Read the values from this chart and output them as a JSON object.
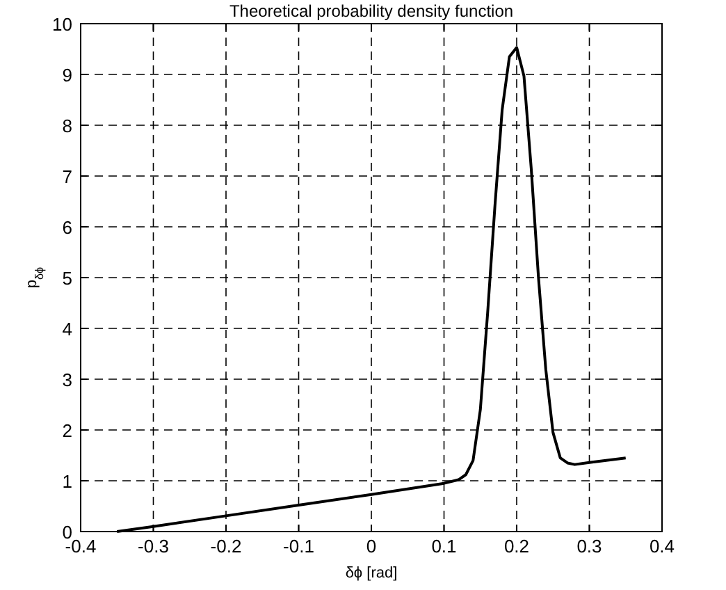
{
  "chart_data": {
    "type": "line",
    "title": "Theoretical probability density function",
    "xlabel": "δϕ [rad]",
    "ylabel": "p$_{δϕ}$",
    "series": [
      {
        "color": "#000000",
        "x": [
          -0.35,
          -0.3,
          -0.2,
          -0.1,
          0,
          0.1,
          0.12,
          0.13,
          0.14,
          0.15,
          0.16,
          0.17,
          0.18,
          0.19,
          0.2,
          0.21,
          0.22,
          0.23,
          0.24,
          0.25,
          0.26,
          0.27,
          0.28,
          0.3,
          0.35
        ],
        "values": [
          0,
          0.1,
          0.31,
          0.52,
          0.73,
          0.95,
          1.02,
          1.12,
          1.4,
          2.4,
          4.3,
          6.4,
          8.3,
          9.35,
          9.53,
          8.97,
          7.15,
          5.0,
          3.2,
          1.95,
          1.45,
          1.35,
          1.32,
          1.36,
          1.45
        ]
      }
    ],
    "xlim": [
      -0.4,
      0.4
    ],
    "xticks": [
      -0.4,
      -0.3,
      -0.2,
      -0.1,
      0,
      0.1,
      0.2,
      0.3,
      0.4
    ],
    "ylim": [
      0,
      10
    ],
    "yticks": [
      0,
      1,
      2,
      3,
      4,
      5,
      6,
      7,
      8,
      9,
      10
    ],
    "grid": true,
    "line_style": "solid",
    "marker": "none"
  }
}
